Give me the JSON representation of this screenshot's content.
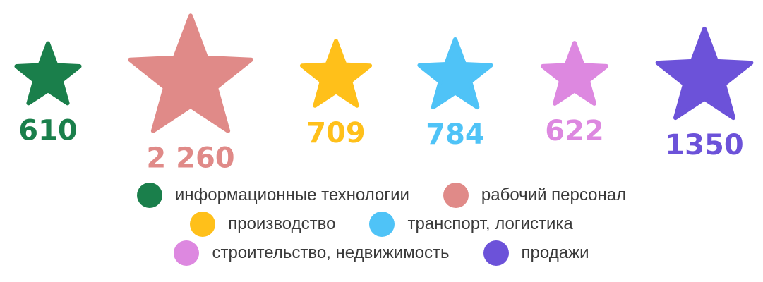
{
  "chart_data": {
    "type": "pictorial-star",
    "categories": [
      "информационные технологии",
      "рабочий персонал",
      "производство",
      "транспорт, логистика",
      "строительство, недвижимость",
      "продажи"
    ],
    "values": [
      610,
      2260,
      709,
      784,
      622,
      1350
    ],
    "value_labels": [
      "610",
      "2 260",
      "709",
      "784",
      "622",
      "1350"
    ],
    "colors": [
      "#1a7f4b",
      "#e08a88",
      "#ffc01a",
      "#4fc3f7",
      "#dd88e0",
      "#6c52d9"
    ],
    "legend_placement": "bottom"
  }
}
